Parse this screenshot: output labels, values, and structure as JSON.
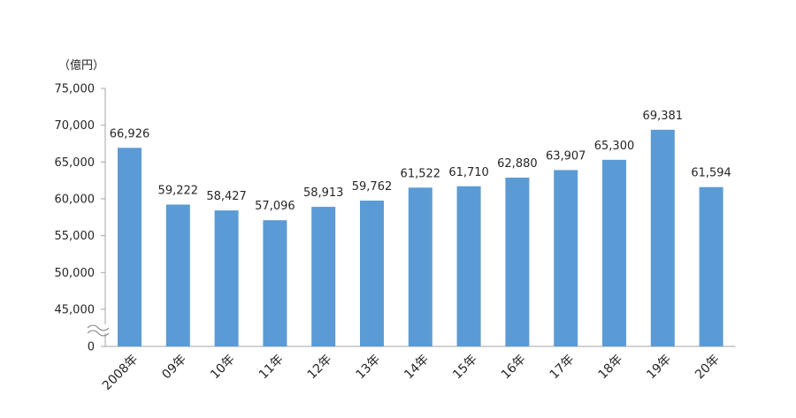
{
  "chart_data": {
    "type": "bar",
    "unit_label": "（億円）",
    "categories": [
      "2008年",
      "09年",
      "10年",
      "11年",
      "12年",
      "13年",
      "14年",
      "15年",
      "16年",
      "17年",
      "18年",
      "19年",
      "20年"
    ],
    "values": [
      66926,
      59222,
      58427,
      57096,
      58913,
      59762,
      61522,
      61710,
      62880,
      63907,
      65300,
      69381,
      61594
    ],
    "value_labels": [
      "66,926",
      "59,222",
      "58,427",
      "57,096",
      "58,913",
      "59,762",
      "61,522",
      "61,710",
      "62,880",
      "63,907",
      "65,300",
      "69,381",
      "61,594"
    ],
    "y_ticks": [
      "75,000",
      "70,000",
      "65,000",
      "60,000",
      "55,000",
      "50,000",
      "45,000",
      "0"
    ],
    "y_tick_values": [
      75000,
      70000,
      65000,
      60000,
      55000,
      50000,
      45000,
      0
    ],
    "ylim": [
      40000,
      75000
    ],
    "axis_break": true,
    "grid": false,
    "legend": "none",
    "bar_color": "#5b9bd5"
  }
}
